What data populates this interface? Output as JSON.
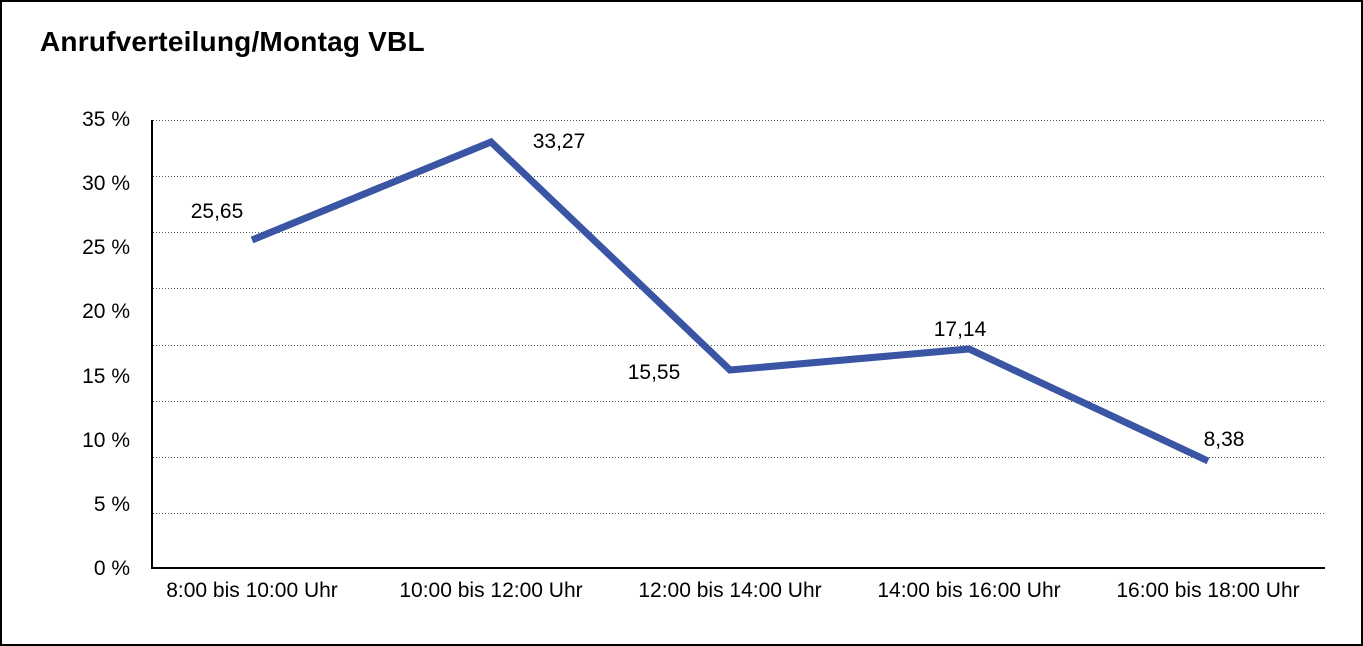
{
  "chart_data": {
    "type": "line",
    "title": "Anrufverteilung/Montag VBL",
    "categories": [
      "8:00 bis 10:00 Uhr",
      "10:00 bis 12:00 Uhr",
      "12:00 bis 14:00 Uhr",
      "14:00 bis 16:00 Uhr",
      "16:00 bis 18:00 Uhr"
    ],
    "values": [
      25.65,
      33.27,
      15.55,
      17.14,
      8.38
    ],
    "value_labels": [
      "25,65",
      "33,27",
      "15,55",
      "17,14",
      "8,38"
    ],
    "y_tick_labels": [
      "35 %",
      "30 %",
      "25 %",
      "20 %",
      "15 %",
      "10 %",
      "5 %",
      "0 %"
    ],
    "ylim": [
      0,
      35
    ],
    "xlabel": "",
    "ylabel": "",
    "grid": "horizontal dotted",
    "grid_intervals": 8,
    "legend": "none",
    "line_color": "#3A55A3",
    "axis_color": "#000000",
    "background_color": "#FFFFFF"
  }
}
